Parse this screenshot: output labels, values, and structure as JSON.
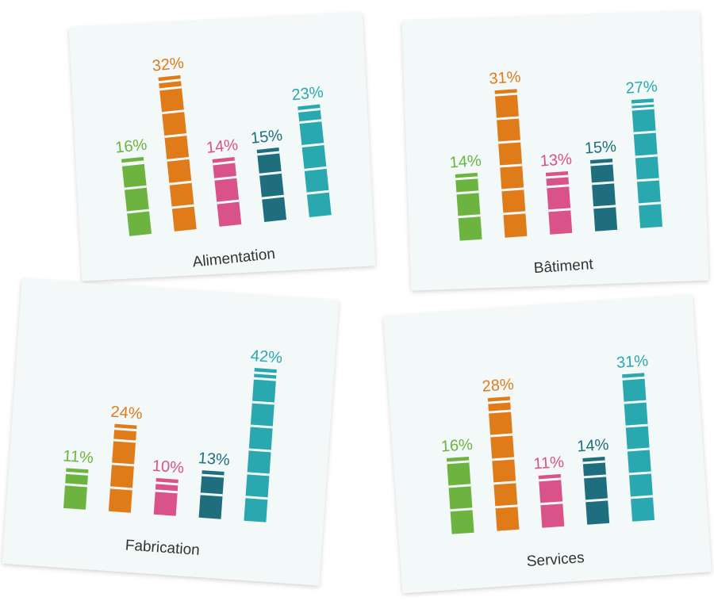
{
  "chart_data": [
    {
      "type": "bar",
      "title": "Alimentation",
      "values": [
        16,
        32,
        14,
        15,
        23
      ],
      "value_labels": [
        "16%",
        "32%",
        "14%",
        "15%",
        "23%"
      ],
      "colors": [
        "#6db33f",
        "#e07b1a",
        "#d9528a",
        "#1e6e7e",
        "#2aa8b0"
      ]
    },
    {
      "type": "bar",
      "title": "Bâtiment",
      "values": [
        14,
        31,
        13,
        15,
        27
      ],
      "value_labels": [
        "14%",
        "31%",
        "13%",
        "15%",
        "27%"
      ],
      "colors": [
        "#6db33f",
        "#e07b1a",
        "#d9528a",
        "#1e6e7e",
        "#2aa8b0"
      ]
    },
    {
      "type": "bar",
      "title": "Fabrication",
      "values": [
        11,
        24,
        10,
        13,
        42
      ],
      "value_labels": [
        "11%",
        "24%",
        "10%",
        "13%",
        "42%"
      ],
      "colors": [
        "#6db33f",
        "#e07b1a",
        "#d9528a",
        "#1e6e7e",
        "#2aa8b0"
      ]
    },
    {
      "type": "bar",
      "title": "Services",
      "values": [
        16,
        28,
        11,
        14,
        31
      ],
      "value_labels": [
        "16%",
        "28%",
        "11%",
        "14%",
        "31%"
      ],
      "colors": [
        "#6db33f",
        "#e07b1a",
        "#d9528a",
        "#1e6e7e",
        "#2aa8b0"
      ]
    }
  ]
}
